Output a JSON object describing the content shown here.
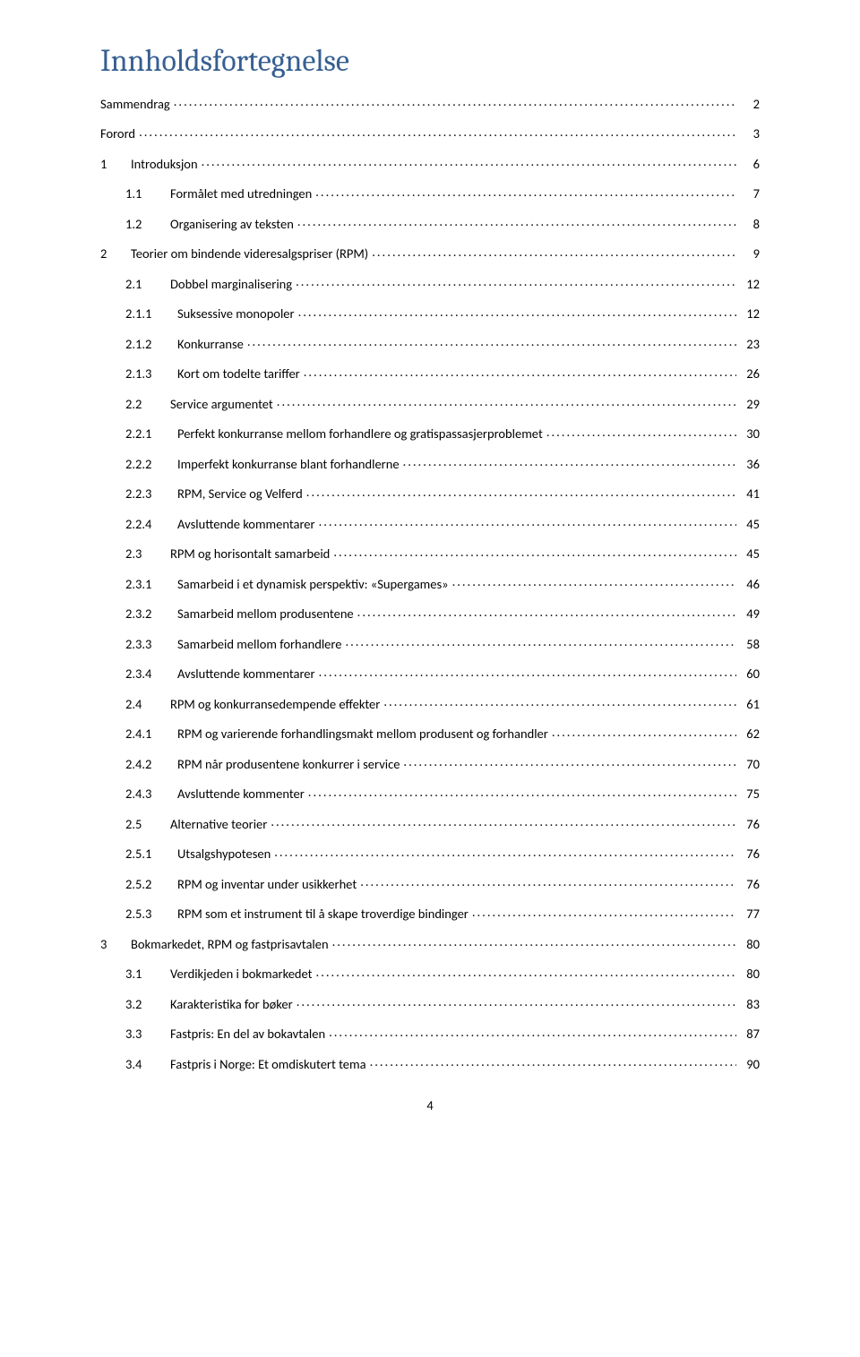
{
  "title": "Innholdsfortegnelse",
  "footer_page": "4",
  "colors": {
    "heading": "#365f91",
    "text": "#000000",
    "background": "#ffffff"
  },
  "entries": [
    {
      "level": 0,
      "num": "",
      "label": "Sammendrag",
      "page": "2"
    },
    {
      "level": 0,
      "num": "",
      "label": "Forord",
      "page": "3"
    },
    {
      "level": 1,
      "num": "1",
      "label": "Introduksjon",
      "page": "6"
    },
    {
      "level": 2,
      "num": "1.1",
      "label": "Formålet med utredningen",
      "page": "7"
    },
    {
      "level": 2,
      "num": "1.2",
      "label": "Organisering av teksten",
      "page": "8"
    },
    {
      "level": 1,
      "num": "2",
      "label": "Teorier om bindende videresalgspriser (RPM)",
      "page": "9"
    },
    {
      "level": 2,
      "num": "2.1",
      "label": "Dobbel marginalisering",
      "page": "12"
    },
    {
      "level": 3,
      "num": "2.1.1",
      "label": "Suksessive monopoler",
      "page": "12"
    },
    {
      "level": 3,
      "num": "2.1.2",
      "label": "Konkurranse",
      "page": "23"
    },
    {
      "level": 3,
      "num": "2.1.3",
      "label": "Kort om todelte tariffer",
      "page": "26"
    },
    {
      "level": 2,
      "num": "2.2",
      "label": "Service argumentet",
      "page": "29"
    },
    {
      "level": 3,
      "num": "2.2.1",
      "label": "Perfekt konkurranse mellom forhandlere og gratispassasjerproblemet",
      "page": "30"
    },
    {
      "level": 3,
      "num": "2.2.2",
      "label": "Imperfekt konkurranse blant forhandlerne",
      "page": "36"
    },
    {
      "level": 3,
      "num": "2.2.3",
      "label": "RPM, Service og Velferd",
      "page": "41"
    },
    {
      "level": 3,
      "num": "2.2.4",
      "label": "Avsluttende kommentarer",
      "page": "45"
    },
    {
      "level": 2,
      "num": "2.3",
      "label": "RPM og horisontalt samarbeid",
      "page": "45"
    },
    {
      "level": 3,
      "num": "2.3.1",
      "label": "Samarbeid i et dynamisk perspektiv: «Supergames»",
      "page": "46"
    },
    {
      "level": 3,
      "num": "2.3.2",
      "label": "Samarbeid mellom produsentene",
      "page": "49"
    },
    {
      "level": 3,
      "num": "2.3.3",
      "label": "Samarbeid mellom forhandlere",
      "page": "58"
    },
    {
      "level": 3,
      "num": "2.3.4",
      "label": "Avsluttende kommentarer",
      "page": "60"
    },
    {
      "level": 2,
      "num": "2.4",
      "label": "RPM og konkurransedempende effekter",
      "page": "61"
    },
    {
      "level": 3,
      "num": "2.4.1",
      "label": "RPM og varierende forhandlingsmakt mellom produsent og forhandler",
      "page": "62"
    },
    {
      "level": 3,
      "num": "2.4.2",
      "label": "RPM når produsentene konkurrer i service",
      "page": "70"
    },
    {
      "level": 3,
      "num": "2.4.3",
      "label": "Avsluttende kommenter",
      "page": "75"
    },
    {
      "level": 2,
      "num": "2.5",
      "label": "Alternative teorier",
      "page": "76"
    },
    {
      "level": 3,
      "num": "2.5.1",
      "label": "Utsalgshypotesen",
      "page": "76"
    },
    {
      "level": 3,
      "num": "2.5.2",
      "label": "RPM og inventar under usikkerhet",
      "page": "76"
    },
    {
      "level": 3,
      "num": "2.5.3",
      "label": "RPM som et instrument til å skape troverdige bindinger",
      "page": "77"
    },
    {
      "level": 1,
      "num": "3",
      "label": "Bokmarkedet, RPM og fastprisavtalen",
      "page": "80"
    },
    {
      "level": 2,
      "num": "3.1",
      "label": "Verdikjeden i bokmarkedet",
      "page": "80"
    },
    {
      "level": 2,
      "num": "3.2",
      "label": "Karakteristika for bøker",
      "page": "83"
    },
    {
      "level": 2,
      "num": "3.3",
      "label": "Fastpris: En del av bokavtalen",
      "page": "87"
    },
    {
      "level": 2,
      "num": "3.4",
      "label": "Fastpris i Norge: Et omdiskutert tema",
      "page": "90"
    }
  ]
}
